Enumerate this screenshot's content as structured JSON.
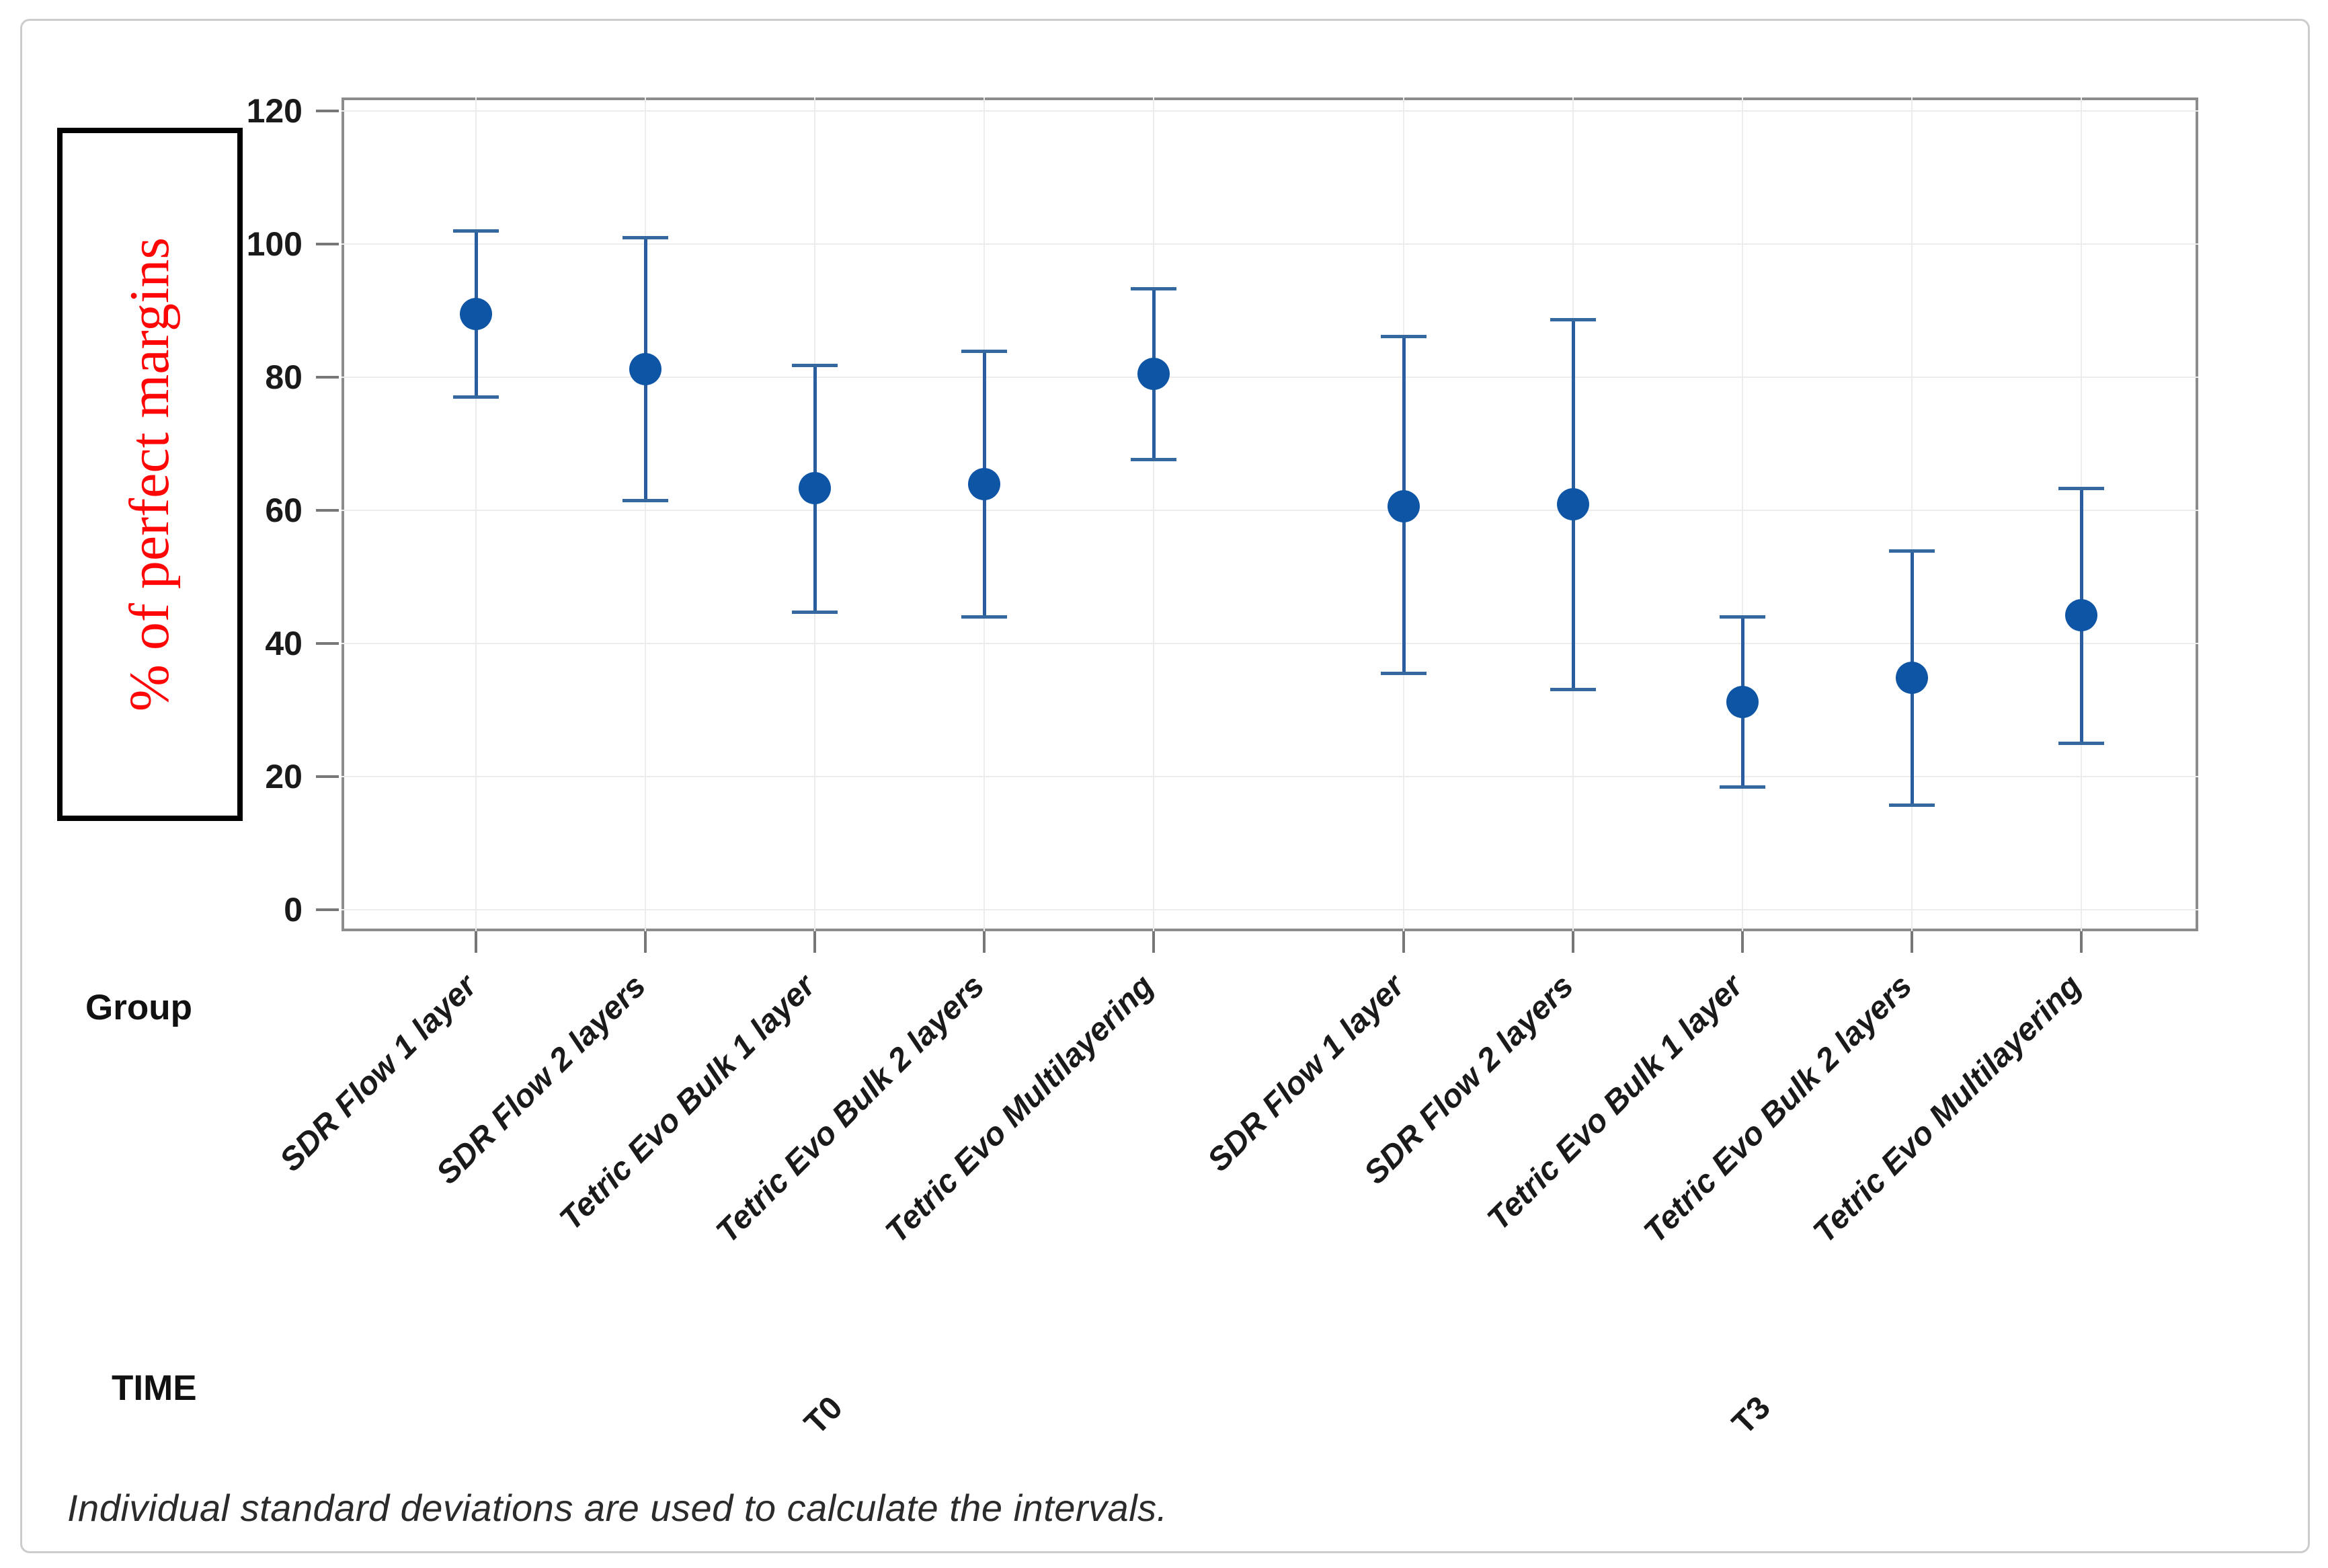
{
  "figure": {
    "y_axis_label": "% of perfect margins",
    "group_axis_label": "Group",
    "time_axis_label": "TIME",
    "footnote": "Individual standard deviations are used to calculate the intervals.",
    "colors": {
      "mean_point": "#0f55a5",
      "interval_bar": "#2a5d9e",
      "y_label_text": "#fe0606",
      "label_box_border": "#000000",
      "plot_frame": "#8c8c8c",
      "gridline": "#ececec"
    }
  },
  "chart_data": {
    "type": "scatter",
    "subtype": "interval-plot-mean-with-sd-bars",
    "title": "",
    "ylabel": "% of perfect margins",
    "xlabel_primary": "Group",
    "xlabel_secondary": "TIME",
    "ylim": [
      0,
      120
    ],
    "yticks": [
      0,
      20,
      40,
      60,
      80,
      100,
      120
    ],
    "grid": true,
    "legend": false,
    "footnote": "Individual standard deviations are used to calculate the intervals.",
    "panels": [
      {
        "time": "T0",
        "points": [
          {
            "group": "SDR Flow 1 layer",
            "mean": 89.5,
            "ci_low": 77.0,
            "ci_high": 102.0
          },
          {
            "group": "SDR Flow 2 layers",
            "mean": 81.2,
            "ci_low": 61.5,
            "ci_high": 101.0
          },
          {
            "group": "Tetric Evo Bulk 1 layer",
            "mean": 63.3,
            "ci_low": 44.7,
            "ci_high": 81.8
          },
          {
            "group": "Tetric Evo Bulk 2 layers",
            "mean": 63.9,
            "ci_low": 44.0,
            "ci_high": 83.9
          },
          {
            "group": "Tetric Evo Multilayering",
            "mean": 80.5,
            "ci_low": 67.6,
            "ci_high": 93.3
          }
        ]
      },
      {
        "time": "T3",
        "points": [
          {
            "group": "SDR Flow 1 layer",
            "mean": 60.6,
            "ci_low": 35.5,
            "ci_high": 86.1
          },
          {
            "group": "SDR Flow 2 layers",
            "mean": 60.9,
            "ci_low": 33.1,
            "ci_high": 88.6
          },
          {
            "group": "Tetric Evo Bulk 1 layer",
            "mean": 31.2,
            "ci_low": 18.4,
            "ci_high": 44.0
          },
          {
            "group": "Tetric Evo Bulk 2 layers",
            "mean": 34.8,
            "ci_low": 15.7,
            "ci_high": 53.9
          },
          {
            "group": "Tetric Evo Multilayering",
            "mean": 44.2,
            "ci_low": 25.0,
            "ci_high": 63.3
          }
        ]
      }
    ]
  }
}
